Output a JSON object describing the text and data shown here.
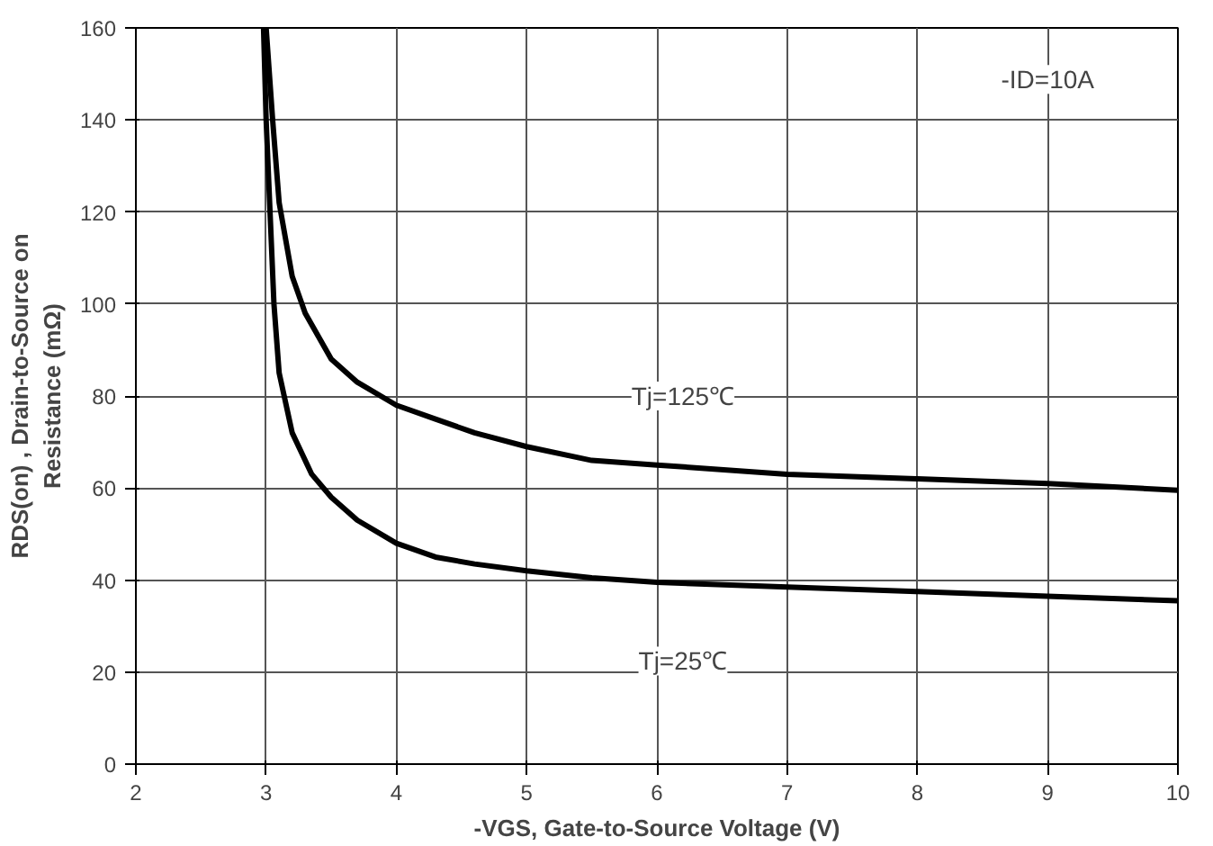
{
  "chart_data": {
    "type": "line",
    "xlabel": "-VGS, Gate-to-Source Voltage (V)",
    "ylabel": "RDS(on) , Drain-to-Source on\nResistance (mΩ)",
    "xlim": [
      2,
      10
    ],
    "ylim": [
      0,
      160
    ],
    "xticks": [
      2,
      3,
      4,
      5,
      6,
      7,
      8,
      9,
      10
    ],
    "yticks": [
      0,
      20,
      40,
      60,
      80,
      100,
      120,
      140,
      160
    ],
    "grid": true,
    "line_style": "solid",
    "series": [
      {
        "color": "#000000",
        "x": [
          3.0,
          3.05,
          3.1,
          3.2,
          3.3,
          3.5,
          3.7,
          4.0,
          4.3,
          4.6,
          5.0,
          5.5,
          6,
          7,
          8,
          9,
          10
        ],
        "values": [
          160,
          140,
          122,
          106,
          98,
          88,
          83,
          78,
          75,
          72,
          69,
          66,
          65,
          63,
          62,
          61,
          59.5
        ]
      },
      {
        "color": "#000000",
        "x": [
          2.98,
          3.0,
          3.03,
          3.06,
          3.1,
          3.2,
          3.35,
          3.5,
          3.7,
          4.0,
          4.3,
          4.6,
          5,
          5.5,
          6,
          7,
          8,
          9,
          10
        ],
        "values": [
          160,
          140,
          120,
          100,
          85,
          72,
          63,
          58,
          53,
          48,
          45,
          43.5,
          42,
          40.5,
          39.5,
          38.5,
          37.5,
          36.5,
          35.5
        ]
      }
    ],
    "annotations": [
      "Tj=125℃",
      "Tj=25℃",
      "-ID=10A"
    ]
  }
}
